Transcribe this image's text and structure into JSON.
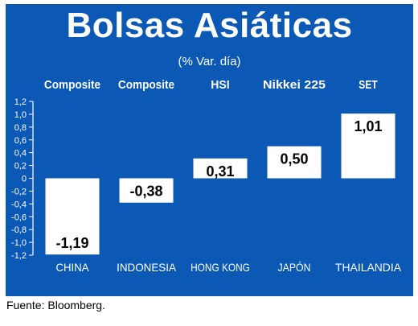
{
  "title": "Bolsas Asiáticas",
  "subtitle": "(% Var. día)",
  "source": "Fuente: Bloomberg.",
  "colors": {
    "background": "#0b58b5",
    "bar": "#ffffff",
    "text": "#ffffff",
    "label": "#000000"
  },
  "chart_data": {
    "type": "bar",
    "title": "Bolsas Asiáticas",
    "subtitle": "(% Var. día)",
    "categories": [
      "CHINA",
      "INDONESIA",
      "HONG KONG",
      "JAPÓN",
      "THAILANDIA"
    ],
    "index_names": [
      "Composite",
      "Composite",
      "HSI",
      "Nikkei 225",
      "SET"
    ],
    "values": [
      -1.19,
      -0.38,
      0.31,
      0.5,
      1.01
    ],
    "value_labels": [
      "-1,19",
      "-0,38",
      "0,31",
      "0,50",
      "1,01"
    ],
    "y_ticks": [
      "1,2",
      "1,0",
      "0,8",
      "0,6",
      "0,4",
      "0,2",
      "0",
      "-0,2",
      "-0,4",
      "-0,6",
      "-0,8",
      "-1,0",
      "-1,2"
    ],
    "y_tick_values": [
      1.2,
      1.0,
      0.8,
      0.6,
      0.4,
      0.2,
      0,
      -0.2,
      -0.4,
      -0.6,
      -0.8,
      -1.0,
      -1.2
    ],
    "ylim": [
      -1.2,
      1.2
    ],
    "grid": false,
    "legend": false
  }
}
